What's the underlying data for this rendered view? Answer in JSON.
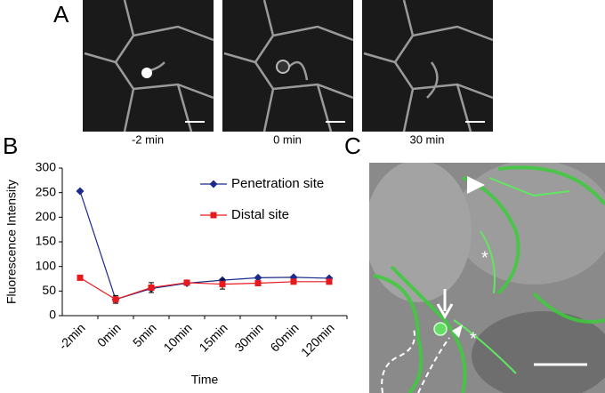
{
  "panel_labels": [
    "A",
    "B",
    "C"
  ],
  "panel_a": {
    "captions": [
      "-2 min",
      "0 min",
      "30 min"
    ]
  },
  "panel_c": {
    "annotations": [
      "*",
      "*"
    ]
  },
  "chart_data": {
    "type": "line",
    "x_label": "Time",
    "y_label": "Fluorescence Intensity",
    "categories": [
      "-2min",
      "0min",
      "5min",
      "10min",
      "15min",
      "30min",
      "60min",
      "120min"
    ],
    "series": [
      {
        "name": "Penetration site",
        "color": "#1c2a8c",
        "marker": "diamond",
        "values": [
          253,
          33,
          55,
          66,
          72,
          77,
          78,
          76
        ]
      },
      {
        "name": "Distal site",
        "color": "#e8191d",
        "marker": "square",
        "values": [
          77,
          33,
          57,
          67,
          64,
          66,
          69,
          69
        ],
        "errors": [
          3,
          8,
          10,
          3,
          10,
          3,
          3,
          3
        ]
      }
    ],
    "ylim": [
      0,
      300
    ],
    "yticks": [
      0,
      50,
      100,
      150,
      200,
      250,
      300
    ],
    "legend": "upper right"
  }
}
